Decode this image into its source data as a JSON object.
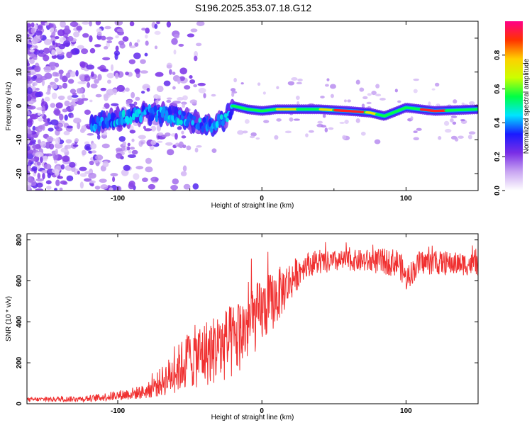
{
  "title": "S196.2025.353.07.18.G12",
  "chart_data": [
    {
      "type": "heatmap",
      "name": "spectrogram",
      "xlabel": "Height of straight line (km)",
      "ylabel": "Frequency (Hz)",
      "xlim": [
        -163,
        150
      ],
      "ylim": [
        -25,
        25
      ],
      "xticks": [
        -100,
        0,
        100
      ],
      "yticks": [
        -20,
        -10,
        0,
        10,
        20
      ],
      "colorbar": {
        "label": "Normalized spectral amplitude",
        "range": [
          0,
          1
        ],
        "ticks": [
          0.0,
          0.2,
          0.4,
          0.6,
          0.8
        ],
        "colors": [
          "#ffffff",
          "#c9a6f2",
          "#7a2ee6",
          "#1a1aff",
          "#00e5ff",
          "#00ff44",
          "#ccff00",
          "#ffd000",
          "#ff3300",
          "#ff0088"
        ]
      },
      "ridge": [
        {
          "x": -115,
          "y": -5
        },
        {
          "x": -100,
          "y": -4
        },
        {
          "x": -80,
          "y": -2
        },
        {
          "x": -60,
          "y": -3
        },
        {
          "x": -45,
          "y": -5
        },
        {
          "x": -35,
          "y": -6
        },
        {
          "x": -25,
          "y": -4
        },
        {
          "x": -20,
          "y": 0
        },
        {
          "x": -10,
          "y": -1
        },
        {
          "x": 0,
          "y": -1.5
        },
        {
          "x": 10,
          "y": -1
        },
        {
          "x": 20,
          "y": -1
        },
        {
          "x": 40,
          "y": -1
        },
        {
          "x": 60,
          "y": -1.5
        },
        {
          "x": 75,
          "y": -2
        },
        {
          "x": 85,
          "y": -3
        },
        {
          "x": 100,
          "y": -0.5
        },
        {
          "x": 120,
          "y": -1.5
        },
        {
          "x": 150,
          "y": -1
        }
      ]
    },
    {
      "type": "line",
      "name": "snr",
      "xlabel": "Height of straight line (km)",
      "ylabel": "SNR (10 * v/v)",
      "xlim": [
        -163,
        150
      ],
      "ylim": [
        0,
        830
      ],
      "xticks": [
        -100,
        0,
        100
      ],
      "yticks": [
        0,
        200,
        400,
        600,
        800
      ],
      "color": "#f03030",
      "envelope": [
        {
          "x": -163,
          "mean": 20,
          "amp": 10
        },
        {
          "x": -120,
          "mean": 25,
          "amp": 15
        },
        {
          "x": -100,
          "mean": 40,
          "amp": 25
        },
        {
          "x": -80,
          "mean": 60,
          "amp": 35
        },
        {
          "x": -65,
          "mean": 130,
          "amp": 90
        },
        {
          "x": -50,
          "mean": 220,
          "amp": 150
        },
        {
          "x": -35,
          "mean": 260,
          "amp": 170
        },
        {
          "x": -20,
          "mean": 300,
          "amp": 190
        },
        {
          "x": -10,
          "mean": 380,
          "amp": 180
        },
        {
          "x": 0,
          "mean": 450,
          "amp": 160
        },
        {
          "x": 10,
          "mean": 520,
          "amp": 140
        },
        {
          "x": 20,
          "mean": 600,
          "amp": 100
        },
        {
          "x": 30,
          "mean": 680,
          "amp": 60
        },
        {
          "x": 60,
          "mean": 700,
          "amp": 50
        },
        {
          "x": 95,
          "mean": 690,
          "amp": 70
        },
        {
          "x": 100,
          "mean": 610,
          "amp": 60
        },
        {
          "x": 110,
          "mean": 690,
          "amp": 60
        },
        {
          "x": 150,
          "mean": 680,
          "amp": 55
        }
      ]
    }
  ]
}
